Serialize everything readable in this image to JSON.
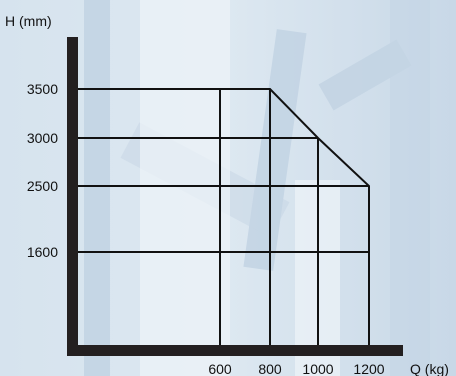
{
  "chart_data": {
    "type": "line",
    "title": "",
    "xlabel": "Q (kg)",
    "ylabel": "H (mm)",
    "x_ticks": [
      600,
      800,
      1000,
      1200
    ],
    "y_ticks": [
      1600,
      2500,
      3000,
      3500
    ],
    "series": [
      {
        "values": [
          {
            "x": 0,
            "y": 3500
          },
          {
            "x": 800,
            "y": 3500
          },
          {
            "x": 1000,
            "y": 3000
          },
          {
            "x": 1200,
            "y": 2500
          },
          {
            "x": 1200,
            "y": 0
          }
        ]
      }
    ],
    "grid": true,
    "colors": {
      "line": "#111111",
      "axis": "#231f20",
      "background_light": "#ffffff",
      "background_blue": "#c9d9e8"
    }
  }
}
